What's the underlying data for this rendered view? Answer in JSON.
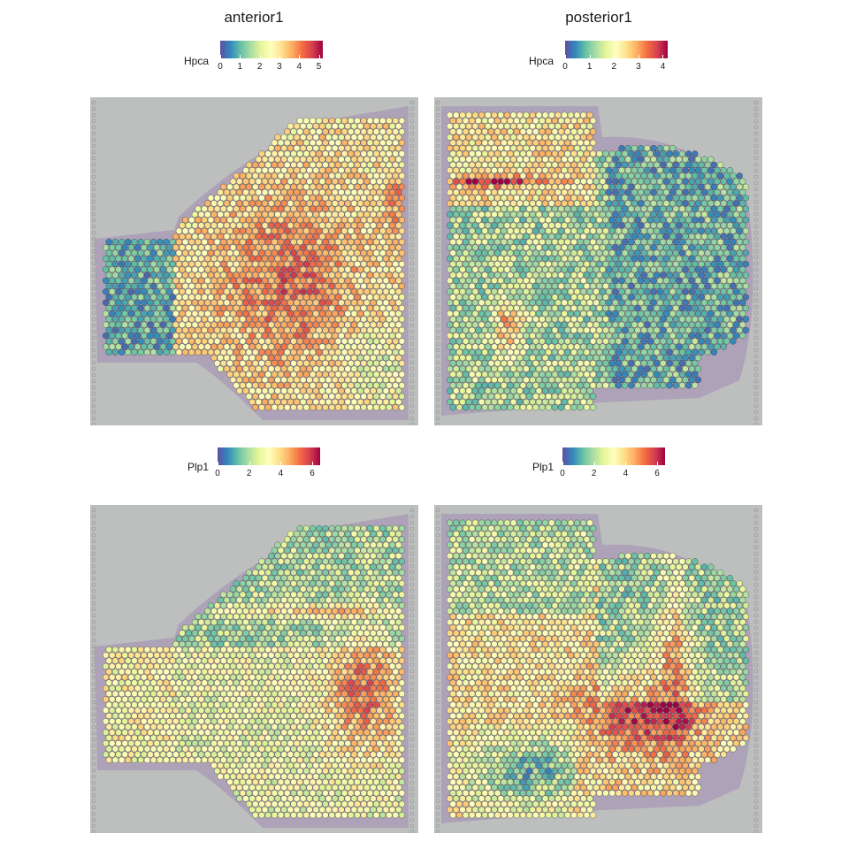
{
  "chart_data": [
    {
      "type": "heatmap",
      "title": "anterior1",
      "legend": {
        "label": "Hpca",
        "ticks": [
          "0",
          "1",
          "2",
          "3",
          "4",
          "5"
        ],
        "range": [
          0,
          5.2
        ]
      },
      "colormap": "Spectral (reversed)",
      "description": "Spatial spot expression of Hpca across an anterior mouse brain section; highest in the central striatal region (~3.5-4), low (~0-1) in the olfactory bulb on the left."
    },
    {
      "type": "heatmap",
      "title": "posterior1",
      "legend": {
        "label": "Hpca",
        "ticks": [
          "0",
          "1",
          "2",
          "3",
          "4"
        ],
        "range": [
          0,
          4.2
        ]
      },
      "colormap": "Spectral (reversed)",
      "description": "Spatial spot expression of Hpca across a posterior mouse brain section; high (~4) along the hippocampal band, low (~0-1) in the cerebellum and brainstem."
    },
    {
      "type": "heatmap",
      "title": "",
      "legend": {
        "label": "Plp1",
        "ticks": [
          "0",
          "2",
          "4",
          "6"
        ],
        "range": [
          0,
          6.5
        ]
      },
      "colormap": "Spectral (reversed)",
      "description": "Spatial spot expression of Plp1 across the anterior section; high (~5-6) along fiber tracts, low (~0-2) in cortex."
    },
    {
      "type": "heatmap",
      "title": "",
      "legend": {
        "label": "Plp1",
        "ticks": [
          "0",
          "2",
          "4",
          "6"
        ],
        "range": [
          0,
          6.5
        ]
      },
      "colormap": "Spectral (reversed)",
      "description": "Spatial spot expression of Plp1 across the posterior section; high (~5-6) in brainstem white matter, low (~0-1) in the lower-left region."
    }
  ],
  "colors": {
    "background": "#ffffff",
    "tissue_bg": "#bcbfbe",
    "tissue_stain": "#9b7fb0",
    "spectral": [
      "#5e4fa2",
      "#3288bd",
      "#66c2a5",
      "#abdda4",
      "#e6f598",
      "#ffffbf",
      "#fee08b",
      "#fdae61",
      "#f46d43",
      "#d53e4f",
      "#9e0142"
    ]
  }
}
